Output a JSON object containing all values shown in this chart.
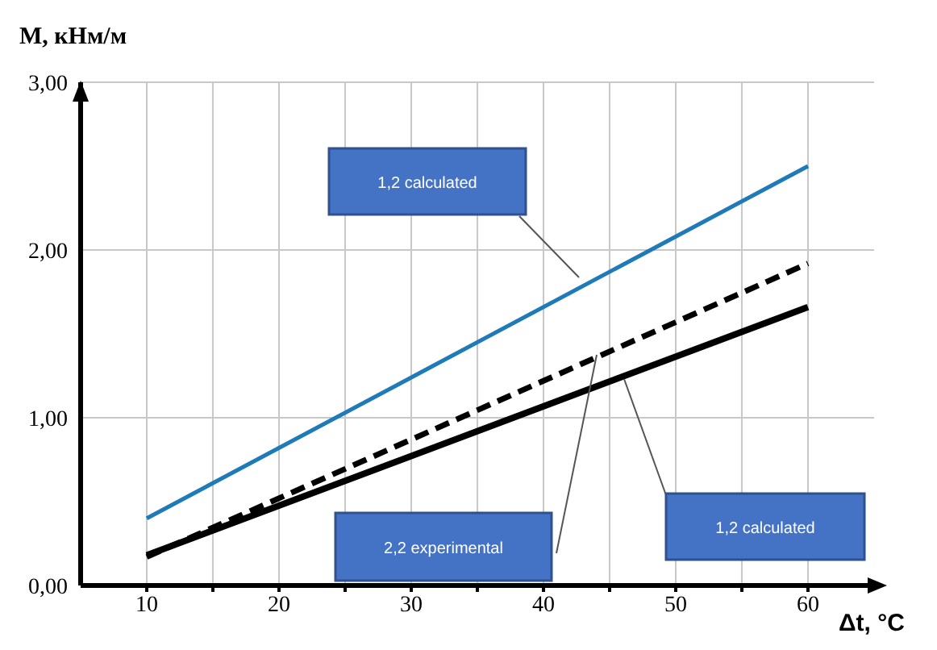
{
  "chart_data": {
    "type": "line",
    "xlabel": "Δt, °C",
    "ylabel": "M, кНм/м",
    "x": [
      10,
      60
    ],
    "series": [
      {
        "color": "#1f7ab8",
        "values": [
          0.4,
          2.5
        ],
        "line_style": "solid"
      },
      {
        "color": "#000000",
        "values": [
          0.17,
          1.92
        ],
        "line_style": "dashed"
      },
      {
        "color": "#000000",
        "values": [
          0.18,
          1.66
        ],
        "line_style": "solid"
      }
    ],
    "xlim": [
      5,
      65
    ],
    "xticks": [
      10,
      {
        "value": 15,
        "label": null
      },
      20,
      {
        "value": 25,
        "label": null
      },
      30,
      {
        "value": 35,
        "label": null
      },
      40,
      {
        "value": 45,
        "label": null
      },
      50,
      {
        "value": 55,
        "label": null
      },
      60
    ],
    "ylim": [
      0,
      3
    ],
    "yticks": [
      {
        "value": 0,
        "label": "0,00"
      },
      {
        "value": 1,
        "label": "1,00"
      },
      {
        "value": 2,
        "label": "2,00"
      },
      {
        "value": 3,
        "label": "3,00"
      }
    ],
    "grid": true,
    "marker": "none",
    "annotations": [
      "1,2 calculated",
      "2,2 experimental",
      "1,2 calculated"
    ]
  }
}
